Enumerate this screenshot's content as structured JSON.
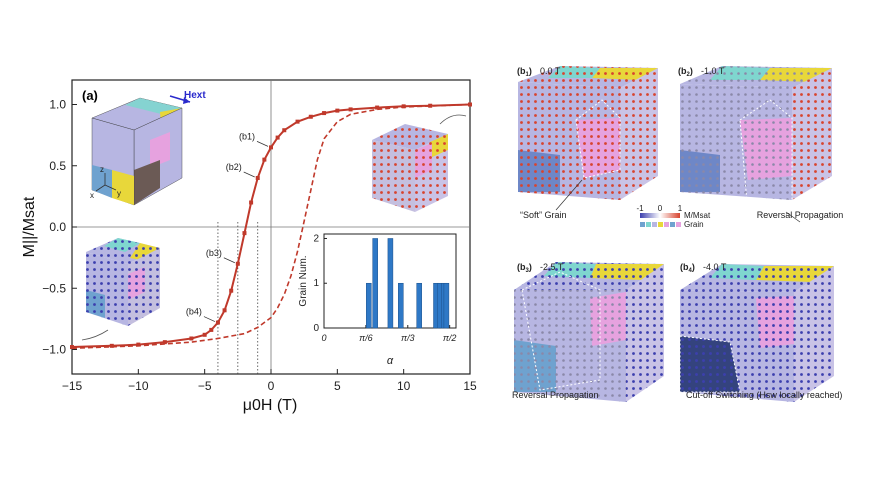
{
  "chart_data": [
    {
      "type": "line",
      "panel_label": "(a)",
      "xlabel": "μ0H (T)",
      "ylabel": "M||/Msat",
      "xlim": [
        -15,
        15
      ],
      "ylim": [
        -1.2,
        1.2
      ],
      "xticks": [
        "−15",
        "−10",
        "−5",
        "0",
        "5",
        "10",
        "15"
      ],
      "yticks": [
        "−1.0",
        "−0.5",
        "0.0",
        "0.5",
        "1.0"
      ],
      "field_label": "Hext",
      "series": [
        {
          "style": "solid-with-markers",
          "color": "#c0392b",
          "x": [
            -15,
            -12,
            -10,
            -8,
            -6,
            -5,
            -4.5,
            -4,
            -3.5,
            -3,
            -2.5,
            -2,
            -1.5,
            -1,
            -0.5,
            0,
            0.5,
            1,
            2,
            3,
            4,
            5,
            6,
            8,
            10,
            12,
            15
          ],
          "y": [
            -0.98,
            -0.97,
            -0.96,
            -0.94,
            -0.91,
            -0.88,
            -0.84,
            -0.78,
            -0.68,
            -0.52,
            -0.3,
            -0.05,
            0.2,
            0.4,
            0.55,
            0.65,
            0.73,
            0.79,
            0.86,
            0.9,
            0.93,
            0.95,
            0.96,
            0.975,
            0.985,
            0.99,
            1.0
          ]
        },
        {
          "style": "dashed",
          "color": "#c0392b",
          "x": [
            -15,
            -10,
            -6,
            -4,
            -2,
            -1,
            0,
            0.5,
            1,
            1.5,
            2,
            2.5,
            3,
            3.5,
            4,
            5,
            6,
            8,
            10,
            15
          ],
          "y": [
            -0.99,
            -0.97,
            -0.94,
            -0.91,
            -0.87,
            -0.82,
            -0.74,
            -0.66,
            -0.55,
            -0.4,
            -0.2,
            0.05,
            0.3,
            0.55,
            0.72,
            0.86,
            0.92,
            0.96,
            0.98,
            1.0
          ]
        }
      ],
      "markers": [
        {
          "label": "(b1)",
          "x": 0,
          "y": 0.65
        },
        {
          "label": "(b2)",
          "x": -1,
          "y": 0.4
        },
        {
          "label": "(b3)",
          "x": -2.5,
          "y": -0.3
        },
        {
          "label": "(b4)",
          "x": -4,
          "y": -0.78
        }
      ],
      "vlines": [
        -4,
        -2.5,
        -1
      ]
    },
    {
      "type": "bar",
      "inset": true,
      "xlabel": "α",
      "ylabel": "Grain Num.",
      "xlim": [
        0,
        1.65
      ],
      "ylim": [
        0,
        2.1
      ],
      "xticks": [
        "0",
        "π/6",
        "π/3",
        "π/2"
      ],
      "yticks": [
        "0",
        "1",
        "2"
      ],
      "x": [
        0.56,
        0.64,
        0.83,
        0.96,
        1.19,
        1.4,
        1.45,
        1.5,
        1.53
      ],
      "values": [
        1,
        2,
        2,
        1,
        1,
        1,
        1,
        1,
        1
      ],
      "color": "#2e78c6"
    }
  ],
  "panels": [
    {
      "label": "b1",
      "value": "0.0 T",
      "note": "“Soft” Grain"
    },
    {
      "label": "b2",
      "value": "-1.0 T",
      "note": "Reversal Propagation"
    },
    {
      "label": "b3",
      "value": "-2.5 T",
      "note": "Reversal Propagation"
    },
    {
      "label": "b4",
      "value": "-4.0 T",
      "note": "Cut-off Switching (Hsw locally reached)"
    }
  ],
  "colorbar": {
    "min": "-1",
    "mid": "0",
    "max": "1",
    "label": "M/Msat",
    "grain_label": "Grain"
  },
  "colors": {
    "up": "#d7442f",
    "down": "#3c3fae",
    "grain_cyan": "#7fd6cf",
    "grain_yellow": "#e8d73a",
    "grain_pink": "#e6a2df",
    "grain_lavender": "#b7b6e2",
    "grain_blue": "#6fa2cf"
  }
}
